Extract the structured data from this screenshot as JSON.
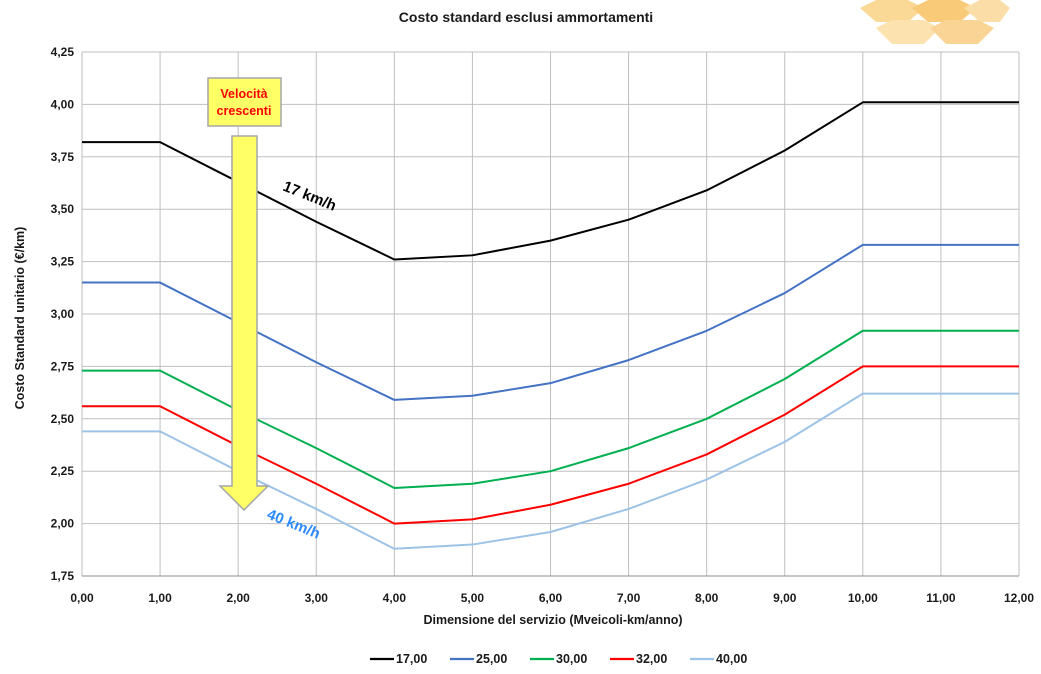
{
  "chart_data": {
    "type": "line",
    "title": "Costo standard esclusi ammortamenti",
    "xlabel": "Dimensione del servizio (Mveicoli-km/anno)",
    "ylabel": "Costo Standard unitario (€/km)",
    "xlim": [
      0,
      12
    ],
    "ylim": [
      1.75,
      4.25
    ],
    "x_ticks": [
      "0,00",
      "1,00",
      "2,00",
      "3,00",
      "4,00",
      "5,00",
      "6,00",
      "7,00",
      "8,00",
      "9,00",
      "10,00",
      "11,00",
      "12,00"
    ],
    "y_ticks": [
      "1,75",
      "2,00",
      "2,25",
      "2,50",
      "2,75",
      "3,00",
      "3,25",
      "3,50",
      "3,75",
      "4,00",
      "4,25"
    ],
    "grid": true,
    "legend_position": "bottom",
    "x": [
      0,
      1,
      2,
      3,
      4,
      5,
      6,
      7,
      8,
      9,
      10,
      11,
      12
    ],
    "series": [
      {
        "name": "17,00",
        "color": "#000000",
        "values": [
          3.82,
          3.82,
          3.63,
          3.44,
          3.26,
          3.28,
          3.35,
          3.45,
          3.59,
          3.78,
          4.01,
          4.01,
          4.01
        ]
      },
      {
        "name": "25,00",
        "color": "#4472C4",
        "values": [
          3.15,
          3.15,
          2.96,
          2.77,
          2.59,
          2.61,
          2.67,
          2.78,
          2.92,
          3.1,
          3.33,
          3.33,
          3.33
        ]
      },
      {
        "name": "30,00",
        "color": "#00B050",
        "values": [
          2.73,
          2.73,
          2.54,
          2.36,
          2.17,
          2.19,
          2.25,
          2.36,
          2.5,
          2.69,
          2.92,
          2.92,
          2.92
        ]
      },
      {
        "name": "32,00",
        "color": "#FF0000",
        "values": [
          2.56,
          2.56,
          2.37,
          2.19,
          2.0,
          2.02,
          2.09,
          2.19,
          2.33,
          2.52,
          2.75,
          2.75,
          2.75
        ]
      },
      {
        "name": "40,00",
        "color": "#9DC3E6",
        "values": [
          2.44,
          2.44,
          2.25,
          2.07,
          1.88,
          1.9,
          1.96,
          2.07,
          2.21,
          2.39,
          2.62,
          2.62,
          2.62
        ]
      }
    ],
    "annotations": [
      {
        "text": "17 km/h",
        "color": "#000000"
      },
      {
        "text": "40 km/h",
        "color": "#2E8BFF"
      }
    ],
    "callout": {
      "line1": "Velocità",
      "line2": "crescenti",
      "text_color": "#FF0000",
      "fill": "#FFFF66"
    }
  }
}
